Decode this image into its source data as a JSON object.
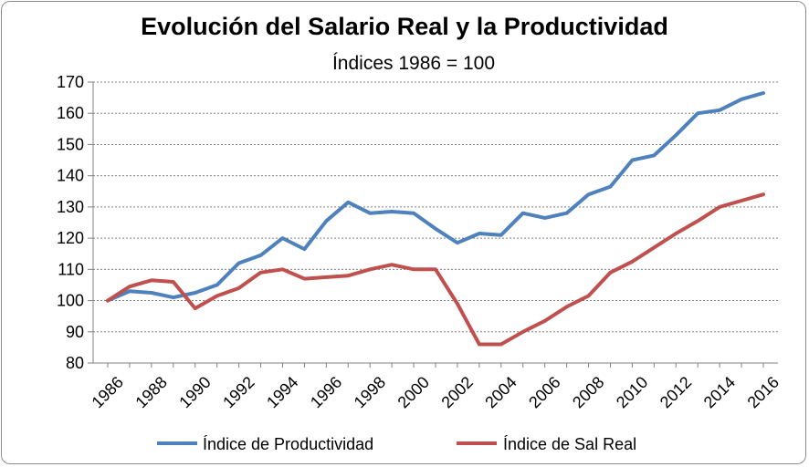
{
  "chart_data": {
    "type": "line",
    "title": "Evolución del Salario Real y la Productividad",
    "subtitle": "Índices 1986 = 100",
    "x": [
      1986,
      1987,
      1988,
      1989,
      1990,
      1991,
      1992,
      1993,
      1994,
      1995,
      1996,
      1997,
      1998,
      1999,
      2000,
      2001,
      2002,
      2003,
      2004,
      2005,
      2006,
      2007,
      2008,
      2009,
      2010,
      2011,
      2012,
      2013,
      2014,
      2015,
      2016
    ],
    "xticks": [
      "1986",
      "1988",
      "1990",
      "1992",
      "1994",
      "1996",
      "1998",
      "2000",
      "2002",
      "2004",
      "2006",
      "2008",
      "2010",
      "2012",
      "2014",
      "2016"
    ],
    "yticks": [
      "80",
      "90",
      "100",
      "110",
      "120",
      "130",
      "140",
      "150",
      "160",
      "170"
    ],
    "ylim": [
      80,
      170
    ],
    "grid": true,
    "legend_position": "bottom",
    "series": [
      {
        "name": "Índice de Productividad",
        "color": "#4f81bd",
        "values": [
          100,
          103,
          102.5,
          101,
          102.5,
          105,
          112,
          114.5,
          120,
          116.5,
          125.5,
          131.5,
          128,
          128.5,
          128,
          123,
          118.5,
          121.5,
          121,
          128,
          126.5,
          128,
          134,
          136.5,
          145,
          146.5,
          153,
          160,
          161,
          164.5,
          166.5
        ]
      },
      {
        "name": "Índice de Sal Real",
        "color": "#c0504d",
        "values": [
          100,
          104.5,
          106.5,
          106,
          97.5,
          101.5,
          104,
          109,
          110,
          107,
          107.5,
          108,
          110,
          111.5,
          110,
          110,
          99,
          86,
          86,
          90,
          93.5,
          98,
          101.5,
          109,
          112.5,
          117,
          121.5,
          125.5,
          130,
          132,
          134
        ]
      }
    ]
  }
}
